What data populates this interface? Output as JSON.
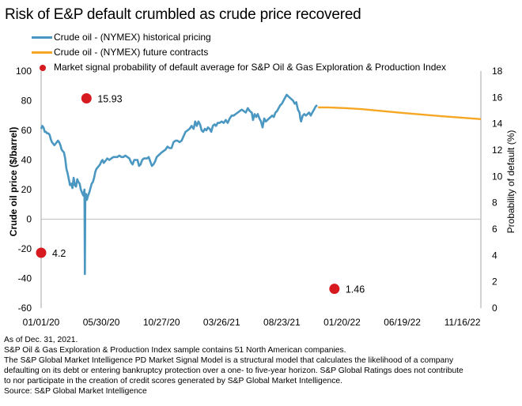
{
  "title": "Risk of E&P default crumbled as crude price recovered",
  "colors": {
    "historical": "#4a97c2",
    "future": "#f5a623",
    "dot": "#d71920",
    "axis": "#b3b3b3",
    "zero_line": "#c8c8c8"
  },
  "legend": [
    {
      "type": "line",
      "label": "Crude oil - (NYMEX) historical pricing",
      "color": "#4a97c2"
    },
    {
      "type": "line",
      "label": "Crude oil - (NYMEX) future contracts",
      "color": "#f5a623"
    },
    {
      "type": "dot",
      "label": "Market signal probability of default average for S&P Oil & Gas Exploration & Production Index",
      "color": "#d71920"
    }
  ],
  "notes": [
    "As of Dec. 31, 2021.",
    "S&P Oil & Gas Exploration & Production Index sample contains 51 North American companies.",
    "The S&P Global Market Intelligence PD Market Signal Model is a structural model that calculates the likelihood of a company",
    "defaulting on its debt or entering bankruptcy protection over a one- to five-year horizon. S&P Global Ratings does not contribute",
    "to nor participate in the creation of credit scores generated by S&P Global Market Intelligence.",
    "Source: S&P Global Market Intelligence"
  ],
  "chart_data": {
    "type": "line",
    "title": "Risk of E&P default crumbled as crude price recovered",
    "xlabel": "",
    "ylabel": "Crude oil price ($/barrel)",
    "y2label": "Probability of default (%)",
    "x_unit": "days since 01/01/20",
    "xlim": [
      0,
      1096
    ],
    "ylim": [
      -60,
      100
    ],
    "y2lim": [
      0,
      18
    ],
    "yticks": [
      -60,
      -40,
      -20,
      0,
      20,
      40,
      60,
      80,
      100
    ],
    "y2ticks": [
      0,
      2,
      4,
      6,
      8,
      10,
      12,
      14,
      16,
      18
    ],
    "xticks": [
      {
        "day": 0,
        "label": "01/01/20"
      },
      {
        "day": 150,
        "label": "05/30/20"
      },
      {
        "day": 300,
        "label": "10/27/20"
      },
      {
        "day": 450,
        "label": "03/26/21"
      },
      {
        "day": 600,
        "label": "08/23/21"
      },
      {
        "day": 750,
        "label": "01/20/22"
      },
      {
        "day": 900,
        "label": "06/19/22"
      },
      {
        "day": 1050,
        "label": "11/16/22"
      }
    ],
    "grid": false,
    "legend_position": "top",
    "series": [
      {
        "name": "Crude oil - (NYMEX) historical pricing",
        "axis": "left",
        "points": [
          [
            0,
            61
          ],
          [
            3,
            63
          ],
          [
            6,
            62
          ],
          [
            9,
            59
          ],
          [
            12,
            59
          ],
          [
            15,
            58
          ],
          [
            18,
            58
          ],
          [
            21,
            57
          ],
          [
            24,
            54
          ],
          [
            27,
            52
          ],
          [
            30,
            51
          ],
          [
            33,
            50
          ],
          [
            36,
            51
          ],
          [
            39,
            52
          ],
          [
            42,
            53
          ],
          [
            45,
            52
          ],
          [
            48,
            50
          ],
          [
            51,
            47
          ],
          [
            54,
            46
          ],
          [
            57,
            45
          ],
          [
            60,
            41
          ],
          [
            63,
            34
          ],
          [
            66,
            31
          ],
          [
            69,
            27
          ],
          [
            72,
            23
          ],
          [
            75,
            24
          ],
          [
            78,
            21
          ],
          [
            81,
            28
          ],
          [
            84,
            23
          ],
          [
            87,
            22
          ],
          [
            90,
            27
          ],
          [
            93,
            25
          ],
          [
            96,
            24
          ],
          [
            99,
            20
          ],
          [
            102,
            18
          ],
          [
            105,
            16
          ],
          [
            108,
            20
          ],
          [
            109,
            -37
          ],
          [
            110,
            12
          ],
          [
            112,
            17
          ],
          [
            114,
            13
          ],
          [
            117,
            16
          ],
          [
            120,
            18
          ],
          [
            123,
            21
          ],
          [
            126,
            24
          ],
          [
            129,
            25
          ],
          [
            132,
            28
          ],
          [
            135,
            32
          ],
          [
            138,
            34
          ],
          [
            141,
            35
          ],
          [
            144,
            36
          ],
          [
            147,
            37
          ],
          [
            150,
            39
          ],
          [
            153,
            40
          ],
          [
            156,
            38
          ],
          [
            159,
            39
          ],
          [
            162,
            40
          ],
          [
            165,
            41
          ],
          [
            170,
            40
          ],
          [
            175,
            41
          ],
          [
            180,
            42
          ],
          [
            185,
            42
          ],
          [
            190,
            42
          ],
          [
            195,
            43
          ],
          [
            200,
            42
          ],
          [
            205,
            42
          ],
          [
            210,
            43
          ],
          [
            215,
            42
          ],
          [
            220,
            41
          ],
          [
            225,
            38
          ],
          [
            228,
            37
          ],
          [
            232,
            40
          ],
          [
            236,
            40
          ],
          [
            240,
            40
          ],
          [
            244,
            36
          ],
          [
            248,
            37
          ],
          [
            252,
            40
          ],
          [
            256,
            41
          ],
          [
            260,
            41
          ],
          [
            264,
            41
          ],
          [
            268,
            42
          ],
          [
            272,
            39
          ],
          [
            276,
            36
          ],
          [
            280,
            37
          ],
          [
            284,
            39
          ],
          [
            288,
            42
          ],
          [
            292,
            43
          ],
          [
            296,
            44
          ],
          [
            300,
            45
          ],
          [
            305,
            46
          ],
          [
            310,
            47
          ],
          [
            315,
            49
          ],
          [
            320,
            48
          ],
          [
            325,
            48
          ],
          [
            330,
            52
          ],
          [
            335,
            53
          ],
          [
            340,
            53
          ],
          [
            345,
            52
          ],
          [
            350,
            53
          ],
          [
            355,
            56
          ],
          [
            360,
            59
          ],
          [
            365,
            60
          ],
          [
            370,
            61
          ],
          [
            375,
            63
          ],
          [
            380,
            61
          ],
          [
            384,
            66
          ],
          [
            388,
            63
          ],
          [
            392,
            66
          ],
          [
            396,
            64
          ],
          [
            400,
            60
          ],
          [
            404,
            59
          ],
          [
            408,
            61
          ],
          [
            412,
            60
          ],
          [
            416,
            62
          ],
          [
            420,
            61
          ],
          [
            424,
            59
          ],
          [
            428,
            63
          ],
          [
            432,
            64
          ],
          [
            436,
            63
          ],
          [
            440,
            65
          ],
          [
            445,
            65
          ],
          [
            450,
            66
          ],
          [
            455,
            65
          ],
          [
            460,
            67
          ],
          [
            465,
            65
          ],
          [
            470,
            68
          ],
          [
            475,
            70
          ],
          [
            480,
            70
          ],
          [
            485,
            71
          ],
          [
            490,
            72
          ],
          [
            495,
            73
          ],
          [
            500,
            74
          ],
          [
            505,
            73
          ],
          [
            510,
            72
          ],
          [
            515,
            75
          ],
          [
            520,
            73
          ],
          [
            525,
            72
          ],
          [
            528,
            67
          ],
          [
            532,
            71
          ],
          [
            536,
            69
          ],
          [
            540,
            71
          ],
          [
            544,
            68
          ],
          [
            548,
            66
          ],
          [
            552,
            62
          ],
          [
            556,
            68
          ],
          [
            560,
            66
          ],
          [
            564,
            67
          ],
          [
            568,
            68
          ],
          [
            572,
            69
          ],
          [
            576,
            70
          ],
          [
            580,
            69
          ],
          [
            584,
            72
          ],
          [
            588,
            73
          ],
          [
            592,
            75
          ],
          [
            596,
            77
          ],
          [
            600,
            78
          ],
          [
            604,
            80
          ],
          [
            608,
            82
          ],
          [
            612,
            84
          ],
          [
            616,
            83
          ],
          [
            620,
            82
          ],
          [
            624,
            81
          ],
          [
            628,
            80
          ],
          [
            632,
            78
          ],
          [
            636,
            79
          ],
          [
            640,
            74
          ],
          [
            644,
            72
          ],
          [
            646,
            68
          ],
          [
            648,
            66
          ],
          [
            652,
            70
          ],
          [
            656,
            71
          ],
          [
            660,
            70
          ],
          [
            664,
            71
          ],
          [
            668,
            72
          ],
          [
            672,
            70
          ],
          [
            676,
            72
          ],
          [
            680,
            74
          ],
          [
            684,
            76
          ],
          [
            688,
            77
          ]
        ]
      },
      {
        "name": "Crude oil - (NYMEX) future contracts",
        "axis": "left",
        "points": [
          [
            690,
            75.5
          ],
          [
            720,
            75.4
          ],
          [
            760,
            75
          ],
          [
            800,
            74.3
          ],
          [
            850,
            73
          ],
          [
            900,
            71.8
          ],
          [
            950,
            70.6
          ],
          [
            1000,
            69.5
          ],
          [
            1050,
            68.5
          ],
          [
            1096,
            67.6
          ]
        ]
      },
      {
        "name": "Market signal probability of default average for S&P Oil & Gas Exploration & Production Index",
        "axis": "right",
        "type": "scatter",
        "points": [
          {
            "day": 0,
            "value": 4.2,
            "label": "4.2"
          },
          {
            "day": 113,
            "value": 15.93,
            "label": "15.93"
          },
          {
            "day": 731,
            "value": 1.46,
            "label": "1.46"
          }
        ]
      }
    ]
  }
}
